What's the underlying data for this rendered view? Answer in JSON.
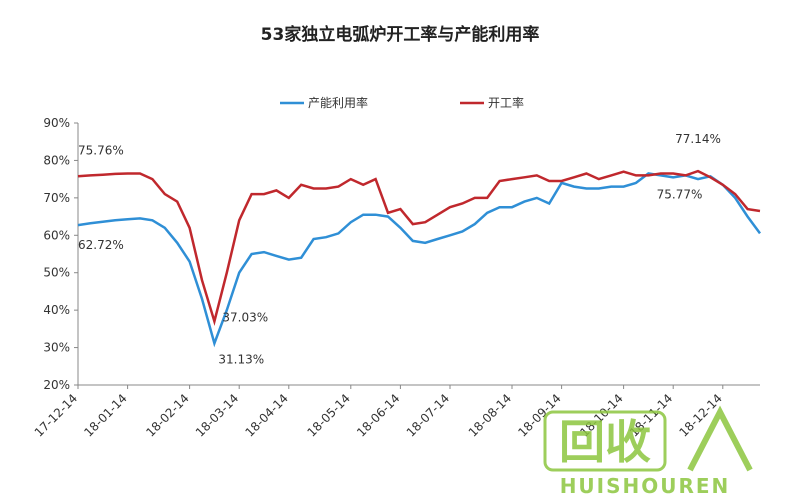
{
  "chart_data": {
    "type": "line",
    "title": "53家独立电弧炉开工率与产能利用率",
    "categories": [
      "17-12-14",
      null,
      null,
      null,
      "18-01-14",
      null,
      null,
      null,
      null,
      "18-02-14",
      null,
      null,
      null,
      "18-03-14",
      null,
      null,
      null,
      "18-04-14",
      null,
      null,
      null,
      null,
      "18-05-14",
      null,
      null,
      null,
      "18-06-14",
      null,
      null,
      null,
      "18-07-14",
      null,
      null,
      null,
      null,
      "18-08-14",
      null,
      null,
      null,
      "18-09-14",
      null,
      null,
      null,
      null,
      "18-10-14",
      null,
      null,
      null,
      "18-11-14",
      null,
      null,
      null,
      "18-12-14",
      null,
      null,
      null
    ],
    "series": [
      {
        "name": "产能利用率",
        "color": "#2f8fd6",
        "values": [
          62.72,
          63.2,
          63.6,
          64,
          64.3,
          64.5,
          64,
          62,
          58,
          53,
          43,
          31.13,
          40,
          50,
          55,
          55.5,
          54.5,
          53.5,
          54,
          59,
          59.5,
          60.5,
          63.5,
          65.5,
          65.5,
          65,
          62,
          58.5,
          58,
          59,
          60,
          61,
          63,
          66,
          67.5,
          67.5,
          69,
          70,
          68.5,
          74,
          73,
          72.5,
          72.5,
          73,
          73,
          74,
          76.5,
          76,
          75.5,
          76,
          75,
          75.77,
          73.5,
          70,
          65,
          60.5
        ],
        "value_labels": [
          "62.72%",
          null,
          null,
          null,
          null,
          null,
          null,
          null,
          null,
          null,
          null,
          "31.13%",
          null,
          null,
          null,
          null,
          null,
          null,
          null,
          null,
          null,
          null,
          null,
          null,
          null,
          null,
          null,
          null,
          null,
          null,
          null,
          null,
          null,
          null,
          null,
          null,
          null,
          null,
          null,
          null,
          null,
          null,
          null,
          null,
          null,
          null,
          null,
          null,
          null,
          null,
          null,
          "75.77%",
          null,
          null,
          null,
          null
        ]
      },
      {
        "name": "开工率",
        "color": "#c0282d",
        "values": [
          75.76,
          76,
          76.2,
          76.4,
          76.5,
          76.5,
          75,
          71,
          69,
          62,
          48,
          37.03,
          50,
          64,
          71,
          71,
          72,
          70,
          73.5,
          72.5,
          72.5,
          73,
          75,
          73.5,
          75,
          66,
          67,
          63,
          63.5,
          65.5,
          67.5,
          68.5,
          70,
          70,
          74.5,
          75,
          75.5,
          76,
          74.5,
          74.5,
          75.5,
          76.5,
          75,
          76,
          77,
          76,
          76,
          76.5,
          76.5,
          76,
          77.14,
          75.5,
          73.5,
          71,
          67,
          66.5
        ],
        "value_labels": [
          "75.76%",
          null,
          null,
          null,
          null,
          null,
          null,
          null,
          null,
          null,
          null,
          "37.03%",
          null,
          null,
          null,
          null,
          null,
          null,
          null,
          null,
          null,
          null,
          null,
          null,
          null,
          null,
          null,
          null,
          null,
          null,
          null,
          null,
          null,
          null,
          null,
          null,
          null,
          null,
          null,
          null,
          null,
          null,
          null,
          null,
          null,
          null,
          null,
          null,
          null,
          null,
          "77.14%",
          null,
          null,
          null,
          null,
          null
        ]
      }
    ],
    "ylim": [
      20,
      90
    ],
    "yticks": [
      {
        "value": 20,
        "label": "20%"
      },
      {
        "value": 30,
        "label": "30%"
      },
      {
        "value": 40,
        "label": "40%"
      },
      {
        "value": 50,
        "label": "50%"
      },
      {
        "value": 60,
        "label": "60%"
      },
      {
        "value": 70,
        "label": "70%"
      },
      {
        "value": 80,
        "label": "80%"
      },
      {
        "value": 90,
        "label": "90%"
      }
    ],
    "grid": false,
    "legend": "top"
  },
  "watermark": {
    "mark": "回收",
    "brand": "HUISHOUREN"
  }
}
